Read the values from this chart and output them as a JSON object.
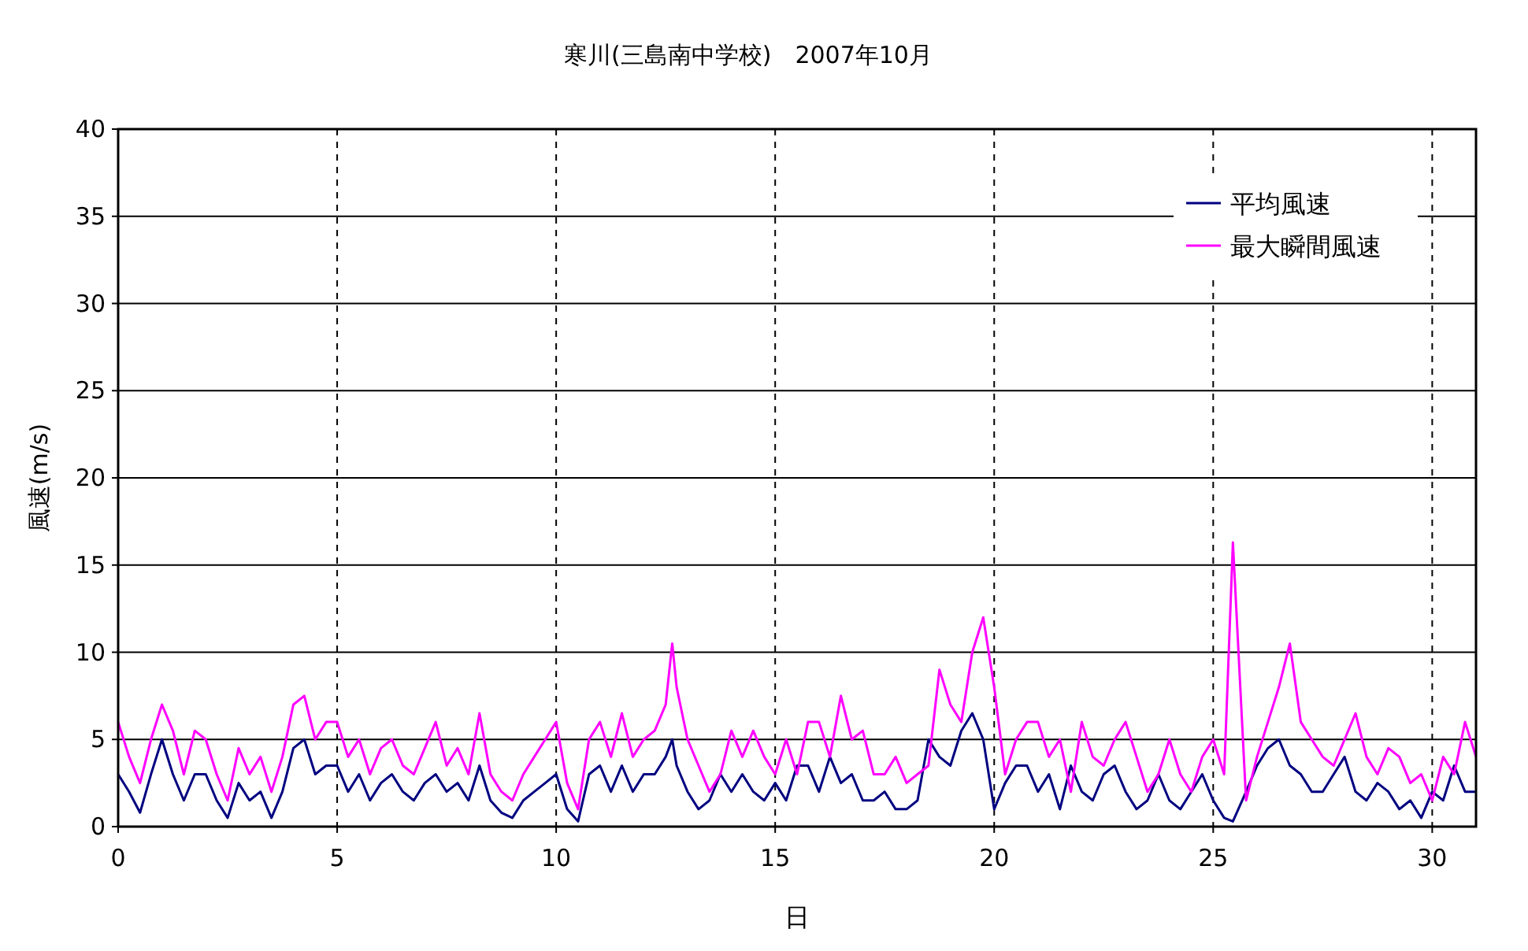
{
  "chart_data": {
    "type": "line",
    "title": "寒川(三島南中学校)　2007年10月",
    "xlabel": "日",
    "ylabel": "風速(m/s)",
    "x": [
      0,
      0.25,
      0.5,
      0.75,
      1,
      1.25,
      1.5,
      1.75,
      2,
      2.25,
      2.5,
      2.75,
      3,
      3.25,
      3.5,
      3.75,
      4,
      4.25,
      4.5,
      4.75,
      5,
      5.25,
      5.5,
      5.75,
      6,
      6.25,
      6.5,
      6.75,
      7,
      7.25,
      7.5,
      7.75,
      8,
      8.25,
      8.5,
      8.75,
      9,
      9.25,
      9.5,
      9.75,
      10,
      10.25,
      10.5,
      10.75,
      11,
      11.25,
      11.5,
      11.75,
      12,
      12.25,
      12.5,
      12.65,
      12.75,
      13,
      13.25,
      13.5,
      13.75,
      14,
      14.25,
      14.5,
      14.75,
      15,
      15.25,
      15.5,
      15.75,
      16,
      16.25,
      16.5,
      16.75,
      17,
      17.25,
      17.5,
      17.75,
      18,
      18.25,
      18.5,
      18.75,
      19,
      19.25,
      19.5,
      19.75,
      20,
      20.25,
      20.5,
      20.75,
      21,
      21.25,
      21.5,
      21.75,
      22,
      22.25,
      22.5,
      22.75,
      23,
      23.25,
      23.5,
      23.75,
      24,
      24.25,
      24.5,
      24.75,
      25,
      25.25,
      25.45,
      25.75,
      26,
      26.25,
      26.5,
      26.75,
      27,
      27.25,
      27.5,
      27.75,
      28,
      28.25,
      28.5,
      28.75,
      29,
      29.25,
      29.5,
      29.75,
      30,
      30.25,
      30.5,
      30.75,
      31
    ],
    "series": [
      {
        "name": "平均風速",
        "color": "#000080",
        "values": [
          3,
          2,
          0.8,
          3,
          5,
          3,
          1.5,
          3,
          3,
          1.5,
          0.5,
          2.5,
          1.5,
          2,
          0.5,
          2,
          4.5,
          5,
          3,
          3.5,
          3.5,
          2,
          3,
          1.5,
          2.5,
          3,
          2,
          1.5,
          2.5,
          3,
          2,
          2.5,
          1.5,
          3.5,
          1.5,
          0.8,
          0.5,
          1.5,
          2,
          2.5,
          3,
          1,
          0.3,
          3,
          3.5,
          2,
          3.5,
          2,
          3,
          3,
          4,
          5,
          3.5,
          2,
          1,
          1.5,
          3,
          2,
          3,
          2,
          1.5,
          2.5,
          1.5,
          3.5,
          3.5,
          2,
          4,
          2.5,
          3,
          1.5,
          1.5,
          2,
          1,
          1,
          1.5,
          5,
          4,
          3.5,
          5.5,
          6.5,
          5,
          1,
          2.5,
          3.5,
          3.5,
          2,
          3,
          1,
          3.5,
          2,
          1.5,
          3,
          3.5,
          2,
          1,
          1.5,
          3,
          1.5,
          1,
          2,
          3,
          1.5,
          0.5,
          0.3,
          2,
          3.5,
          4.5,
          5,
          3.5,
          3,
          2,
          2,
          3,
          4,
          2,
          1.5,
          2.5,
          2,
          1,
          1.5,
          0.5,
          2,
          1.5,
          3.5,
          2,
          2
        ]
      },
      {
        "name": "最大瞬間風速",
        "color": "#ff00ff",
        "values": [
          6,
          4,
          2.5,
          5,
          7,
          5.5,
          3,
          5.5,
          5,
          3,
          1.5,
          4.5,
          3,
          4,
          2,
          4,
          7,
          7.5,
          5,
          6,
          6,
          4,
          5,
          3,
          4.5,
          5,
          3.5,
          3,
          4.5,
          6,
          3.5,
          4.5,
          3,
          6.5,
          3,
          2,
          1.5,
          3,
          4,
          5,
          6,
          2.5,
          1,
          5,
          6,
          4,
          6.5,
          4,
          5,
          5.5,
          7,
          10.5,
          8,
          5,
          3.5,
          2,
          3,
          5.5,
          4,
          5.5,
          4,
          3,
          5,
          3,
          6,
          6,
          4,
          7.5,
          5,
          5.5,
          3,
          3,
          4,
          2.5,
          3,
          3.5,
          9,
          7,
          6,
          10,
          12,
          8,
          3,
          5,
          6,
          6,
          4,
          5,
          2,
          6,
          4,
          3.5,
          5,
          6,
          4,
          2,
          3,
          5,
          3,
          2,
          4,
          5,
          3,
          16.3,
          1.5,
          4,
          6,
          8,
          10.5,
          6,
          5,
          4,
          3.5,
          5,
          6.5,
          4,
          3,
          4.5,
          4,
          2.5,
          3,
          1.5,
          4,
          3,
          6,
          4
        ]
      }
    ],
    "xlim": [
      0,
      31
    ],
    "ylim": [
      0,
      40
    ],
    "xticks": [
      0,
      5,
      10,
      15,
      20,
      25,
      30
    ],
    "yticks": [
      0,
      5,
      10,
      15,
      20,
      25,
      30,
      35,
      40
    ],
    "grid": true,
    "legend": "top right",
    "marker": "none",
    "line_style": "solid"
  }
}
